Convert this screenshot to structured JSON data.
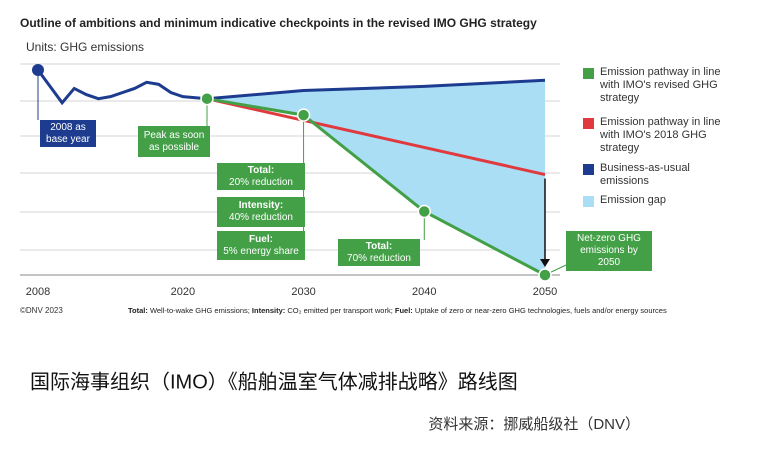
{
  "chart_data": {
    "type": "line",
    "title": "Outline of ambitions and minimum indicative checkpoints in the revised IMO GHG strategy",
    "subtitle": "Units: GHG emissions",
    "xlim": [
      2008,
      2050
    ],
    "xticks": [
      2008,
      2020,
      2030,
      2040,
      2050
    ],
    "ylim": [
      0,
      100
    ],
    "series": [
      {
        "name": "Emission pathway in line with IMO's revised GHG strategy",
        "color": "#43a047",
        "x": [
          2022,
          2030,
          2040,
          2050
        ],
        "values": [
          86,
          78,
          31,
          0
        ]
      },
      {
        "name": "Emission pathway in line with IMO's 2018 GHG strategy",
        "color": "#e0393e",
        "x": [
          2022,
          2050
        ],
        "values": [
          86,
          49
        ]
      },
      {
        "name": "Business-as-usual emissions",
        "color": "#1d3c8f",
        "x": [
          2008,
          2010,
          2011,
          2012,
          2013,
          2014,
          2016,
          2017,
          2018,
          2019,
          2020,
          2022,
          2030,
          2040,
          2050
        ],
        "values": [
          100,
          84,
          91,
          88,
          86,
          87,
          91,
          94,
          93,
          89,
          87,
          86,
          90,
          92,
          95
        ]
      }
    ],
    "gap": {
      "name": "Emission gap",
      "color": "#a9def5"
    },
    "annotations": [
      {
        "text": "2008 as base year"
      },
      {
        "text": "Peak as soon as possible"
      },
      {
        "label": "Total:",
        "text": "20% reduction"
      },
      {
        "label": "Intensity:",
        "text": "40% reduction"
      },
      {
        "label": "Fuel:",
        "text": "5% energy share"
      },
      {
        "label": "Total:",
        "text": "70% reduction"
      },
      {
        "text": "Net-zero GHG emissions by 2050"
      }
    ],
    "credit": "©DNV 2023",
    "note": [
      "Total:",
      " Well-to-wake GHG emissions; ",
      "Intensity:",
      " CO₂ emitted per transport work; ",
      "Fuel:",
      " Uptake of zero or near-zero GHG technologies, fuels and/or energy sources"
    ]
  },
  "caption": "国际海事组织（IMO）《船舶温室气体减排战略》路线图",
  "source": "资料来源：挪威船级社（DNV）"
}
